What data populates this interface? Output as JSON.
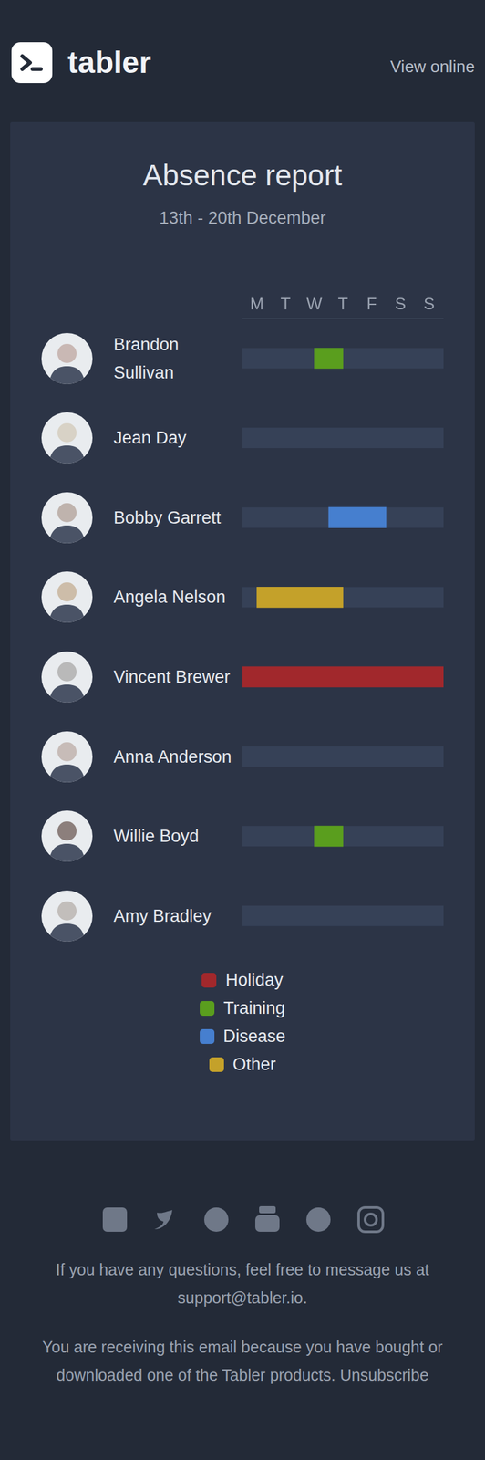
{
  "header": {
    "logo": "tabler",
    "link": "View online"
  },
  "report": {
    "title": "Absence report",
    "subtitle": "13th - 20th December"
  },
  "chart_data": {
    "type": "bar",
    "orientation": "horizontal",
    "categories": [
      "Brandon Sullivan",
      "Jean Day",
      "Bobby Garrett",
      "Angela Nelson",
      "Vincent Brewer",
      "Anna Anderson",
      "Willie Boyd",
      "Amy Bradley"
    ],
    "series": [
      {
        "name": "Holiday",
        "color": "#a1282c",
        "values": [
          null,
          null,
          null,
          null,
          [
            0,
            7
          ],
          null,
          null,
          null
        ]
      },
      {
        "name": "Training",
        "color": "#5a9e1e",
        "values": [
          [
            2.5,
            3.5
          ],
          null,
          null,
          null,
          null,
          null,
          [
            2.5,
            3.5
          ],
          null
        ]
      },
      {
        "name": "Disease",
        "color": "#467fcf",
        "values": [
          null,
          null,
          [
            3,
            5
          ],
          null,
          null,
          null,
          null,
          null
        ]
      },
      {
        "name": "Other",
        "color": "#c4a12a",
        "values": [
          null,
          null,
          null,
          [
            0.5,
            3.5
          ],
          null,
          null,
          null,
          null
        ]
      }
    ],
    "xlim": [
      0,
      7
    ],
    "xticks": [
      {
        "value": 0.5,
        "label": "M"
      },
      {
        "value": 1.5,
        "label": "T"
      },
      {
        "value": 2.5,
        "label": "W"
      },
      {
        "value": 3.5,
        "label": "T"
      },
      {
        "value": 4.5,
        "label": "F"
      },
      {
        "value": 5.5,
        "label": "S"
      },
      {
        "value": 6.5,
        "label": "S"
      }
    ],
    "tick_labels": "x",
    "grid": false
  },
  "footer": {
    "contact": "If you have any questions, feel free to message us at support@tabler.io.",
    "notice": "You are receiving this email because you have bought or downloaded one of the Tabler products. Unsubscribe"
  }
}
